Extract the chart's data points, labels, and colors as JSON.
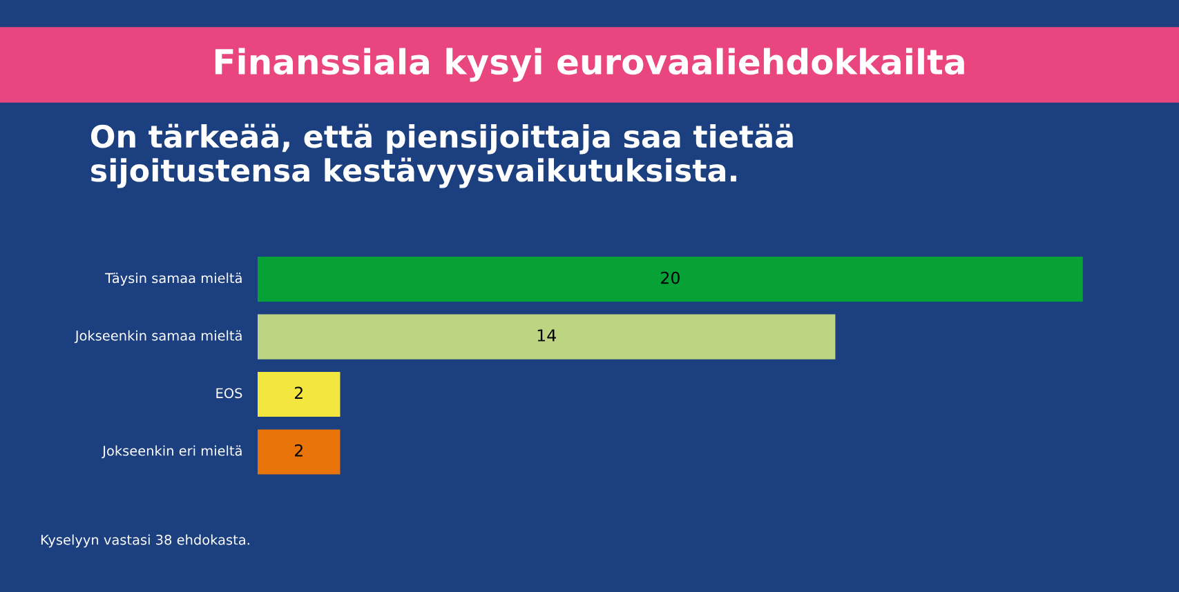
{
  "chart_data": {
    "type": "bar",
    "orientation": "horizontal",
    "title": "Finanssiala kysyi eurovaaliehdokkailta",
    "subtitle": "On tärkeää, että piensijoittaja saa tietää\nsijoitustensa kestävyysvaikutuksista.",
    "categories": [
      "Täysin samaa mieltä",
      "Jokseenkin samaa mieltä",
      "EOS",
      "Jokseenkin eri mieltä"
    ],
    "values": [
      20,
      14,
      2,
      2
    ],
    "colors": [
      "#07a237",
      "#bdd582",
      "#f2e63f",
      "#e8740a"
    ],
    "data_labels": true,
    "annotations": [
      "Kyselyyn vastasi 38 ehdokasta."
    ]
  }
}
